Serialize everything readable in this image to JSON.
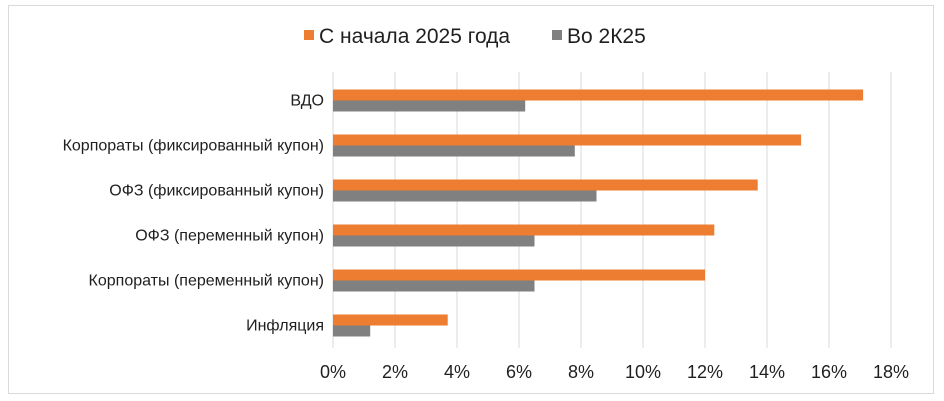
{
  "chart_data": {
    "type": "bar",
    "orientation": "horizontal",
    "categories": [
      "ВДО",
      "Корпораты (фиксированный купон)",
      "ОФЗ (фиксированный купон)",
      "ОФЗ (переменный купон)",
      "Корпораты (переменный купон)",
      "Инфляция"
    ],
    "series": [
      {
        "name": "С начала 2025 года",
        "color": "#ed7d31",
        "values": [
          17.1,
          15.1,
          13.7,
          12.3,
          12.0,
          3.7
        ]
      },
      {
        "name": "Во 2К25",
        "color": "#808080",
        "values": [
          6.2,
          7.8,
          8.5,
          6.5,
          6.5,
          1.2
        ]
      }
    ],
    "xlim": [
      0,
      18
    ],
    "x_ticks": [
      "0%",
      "2%",
      "4%",
      "6%",
      "8%",
      "10%",
      "12%",
      "14%",
      "16%",
      "18%"
    ],
    "grid": "vertical",
    "legend_position": "top",
    "title": "",
    "xlabel": "",
    "ylabel": ""
  }
}
